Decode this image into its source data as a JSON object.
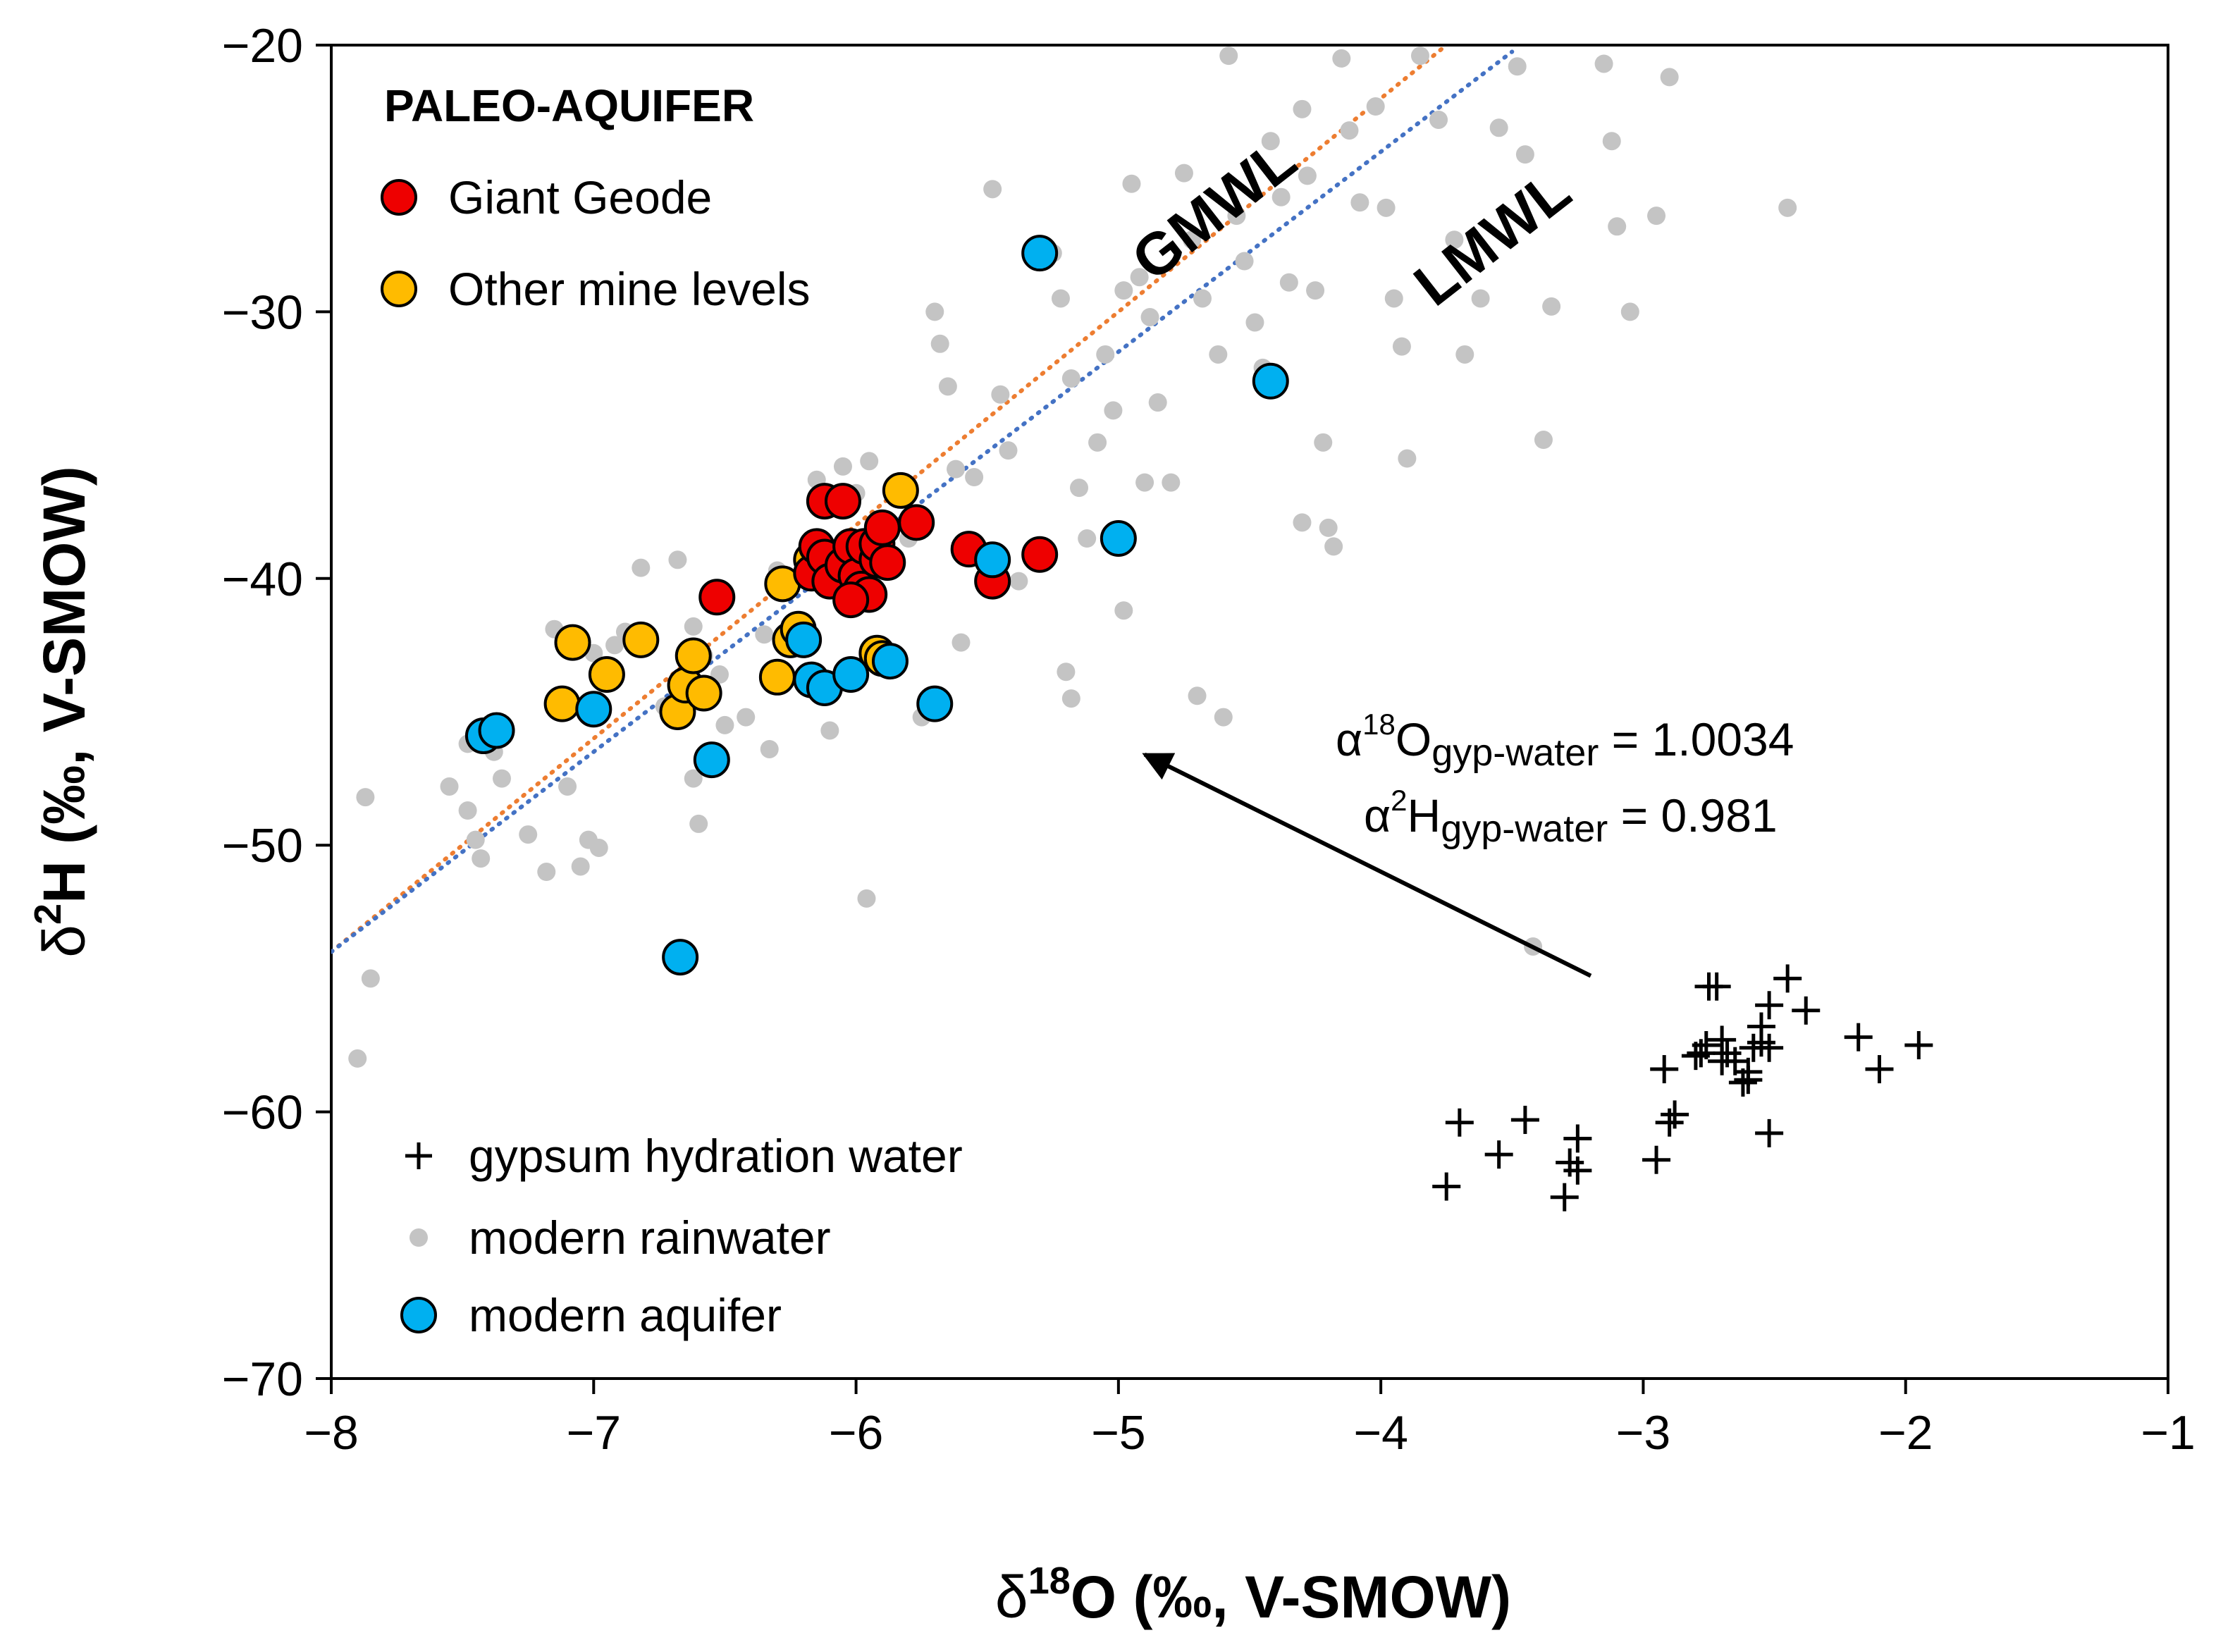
{
  "colors": {
    "giant_geode": "#ee0000",
    "other_levels": "#ffbb00",
    "modern_aquifer": "#00b0f0",
    "rainwater": "#c4c4c4",
    "gmwl": "#ed7d31",
    "lmwl": "#4472c4",
    "ink": "#000000"
  },
  "chart_data": {
    "type": "scatter",
    "xlabel": {
      "prefix": "δ",
      "sup": "18",
      "main": "O (‰, V-SMOW)"
    },
    "ylabel": {
      "prefix": "δ",
      "sup": "2",
      "main": "H (‰, V-SMOW)"
    },
    "xlim": [
      -8,
      -1
    ],
    "ylim": [
      -70,
      -20
    ],
    "x_ticks": [
      -8,
      -7,
      -6,
      -5,
      -4,
      -3,
      -2,
      -1
    ],
    "y_ticks": [
      -20,
      -30,
      -40,
      -50,
      -60,
      -70
    ],
    "x_tick_labels": [
      "−8",
      "−7",
      "−6",
      "−5",
      "−4",
      "−3",
      "−2",
      "−1"
    ],
    "y_tick_labels": [
      "−20",
      "−30",
      "−40",
      "−50",
      "−60",
      "−70"
    ],
    "grid": false,
    "legend_top": {
      "title": "PALEO-AQUIFER",
      "items": [
        "Giant Geode",
        "Other mine levels"
      ]
    },
    "legend_bottom": {
      "items": [
        "gypsum hydration water",
        "modern rainwater",
        "modern aquifer"
      ]
    },
    "lines": [
      {
        "name": "GMWL",
        "slope": 8,
        "intercept": 10,
        "x_range": [
          -8,
          -3.75
        ],
        "style": "dotted"
      },
      {
        "name": "LMWL",
        "slope": 7.5,
        "intercept": 6,
        "x_range": [
          -8,
          -3.5
        ],
        "style": "dotted"
      }
    ],
    "annotation": {
      "line1": {
        "alpha": "α",
        "sup": "18",
        "el": "O",
        "sub": "gyp-water",
        "val": " = 1.0034"
      },
      "line2": {
        "alpha": "α",
        "sup": "2",
        "el": "H",
        "sub": "gyp-water",
        "val": " = 0.981"
      },
      "arrow_from": [
        -3.2,
        -54.9
      ],
      "arrow_to": [
        -4.9,
        -46.6
      ]
    },
    "series": [
      {
        "name": "modern rainwater",
        "marker": "dot",
        "points": [
          [
            -7.9,
            -58
          ],
          [
            -7.85,
            -55
          ],
          [
            -7.87,
            -48.2
          ],
          [
            -7.55,
            -47.8
          ],
          [
            -7.48,
            -48.7
          ],
          [
            -7.45,
            -49.8
          ],
          [
            -7.43,
            -50.5
          ],
          [
            -7.38,
            -46.5
          ],
          [
            -7.25,
            -49.6
          ],
          [
            -7.18,
            -51
          ],
          [
            -7.1,
            -47.8
          ],
          [
            -7.05,
            -50.8
          ],
          [
            -7.02,
            -49.8
          ],
          [
            -6.98,
            -50.1
          ],
          [
            -7.15,
            -41.9
          ],
          [
            -7,
            -42.8
          ],
          [
            -6.92,
            -42.5
          ],
          [
            -6.88,
            -42
          ],
          [
            -6.82,
            -39.6
          ],
          [
            -6.73,
            -44.8
          ],
          [
            -6.68,
            -39.3
          ],
          [
            -6.62,
            -41.8
          ],
          [
            -6.58,
            -42.9
          ],
          [
            -6.52,
            -43.6
          ],
          [
            -6.5,
            -45.5
          ],
          [
            -6.42,
            -45.2
          ],
          [
            -6.3,
            -39.7
          ],
          [
            -6.33,
            -46.4
          ],
          [
            -6.22,
            -42.6
          ],
          [
            -6.1,
            -45.7
          ],
          [
            -6.05,
            -35.8
          ],
          [
            -6,
            -36.8
          ],
          [
            -5.95,
            -35.6
          ],
          [
            -5.96,
            -52
          ],
          [
            -5.85,
            -39.2
          ],
          [
            -5.7,
            -30
          ],
          [
            -5.68,
            -31.2
          ],
          [
            -5.65,
            -32.8
          ],
          [
            -5.62,
            -35.9
          ],
          [
            -5.55,
            -36.2
          ],
          [
            -5.48,
            -25.4
          ],
          [
            -5.45,
            -33.1
          ],
          [
            -5.42,
            -35.2
          ],
          [
            -5.38,
            -40.1
          ],
          [
            -5.25,
            -27.8
          ],
          [
            -5.22,
            -29.5
          ],
          [
            -5.18,
            -32.5
          ],
          [
            -5.15,
            -36.6
          ],
          [
            -5.12,
            -38.5
          ],
          [
            -5.08,
            -34.9
          ],
          [
            -5.05,
            -31.6
          ],
          [
            -5.02,
            -33.7
          ],
          [
            -4.98,
            -29.2
          ],
          [
            -4.95,
            -25.2
          ],
          [
            -4.92,
            -28.7
          ],
          [
            -4.88,
            -30.2
          ],
          [
            -4.85,
            -33.4
          ],
          [
            -4.8,
            -36.4
          ],
          [
            -4.75,
            -24.8
          ],
          [
            -4.72,
            -27.3
          ],
          [
            -4.68,
            -29.5
          ],
          [
            -4.62,
            -31.6
          ],
          [
            -4.58,
            -20.4
          ],
          [
            -4.55,
            -26.4
          ],
          [
            -4.52,
            -28.1
          ],
          [
            -4.48,
            -30.4
          ],
          [
            -4.45,
            -32.1
          ],
          [
            -4.42,
            -23.6
          ],
          [
            -4.38,
            -25.7
          ],
          [
            -4.35,
            -28.9
          ],
          [
            -4.3,
            -22.4
          ],
          [
            -4.28,
            -24.9
          ],
          [
            -4.25,
            -29.2
          ],
          [
            -4.22,
            -34.9
          ],
          [
            -4.2,
            -38.1
          ],
          [
            -4.18,
            -38.8
          ],
          [
            -4.15,
            -20.5
          ],
          [
            -4.12,
            -23.2
          ],
          [
            -4.08,
            -25.9
          ],
          [
            -4.02,
            -22.3
          ],
          [
            -3.98,
            -26.1
          ],
          [
            -3.95,
            -29.5
          ],
          [
            -3.92,
            -31.3
          ],
          [
            -3.9,
            -35.5
          ],
          [
            -3.85,
            -20.4
          ],
          [
            -3.78,
            -22.8
          ],
          [
            -3.72,
            -27.3
          ],
          [
            -3.68,
            -31.6
          ],
          [
            -3.62,
            -29.5
          ],
          [
            -3.55,
            -23.1
          ],
          [
            -3.48,
            -20.8
          ],
          [
            -3.45,
            -24.1
          ],
          [
            -3.42,
            -53.8
          ],
          [
            -3.38,
            -34.8
          ],
          [
            -3.35,
            -29.8
          ],
          [
            -3.15,
            -20.7
          ],
          [
            -3.12,
            -23.6
          ],
          [
            -3.1,
            -26.8
          ],
          [
            -3.05,
            -30
          ],
          [
            -2.95,
            -26.4
          ],
          [
            -2.9,
            -21.2
          ],
          [
            -2.45,
            -26.1
          ],
          [
            -5.8,
            -38.5
          ],
          [
            -5.2,
            -43.5
          ],
          [
            -5.18,
            -44.5
          ],
          [
            -4.98,
            -41.2
          ],
          [
            -4.9,
            -36.4
          ],
          [
            -4.7,
            -44.4
          ],
          [
            -4.6,
            -45.2
          ],
          [
            -4.3,
            -37.9
          ],
          [
            -5.6,
            -42.4
          ],
          [
            -5.75,
            -45.2
          ],
          [
            -6.12,
            -38.9
          ],
          [
            -6.15,
            -36.3
          ],
          [
            -6.35,
            -42.1
          ],
          [
            -6.6,
            -49.2
          ],
          [
            -6.62,
            -47.5
          ],
          [
            -6.15,
            -43.5
          ],
          [
            -7.35,
            -47.5
          ],
          [
            -7.48,
            -46.2
          ]
        ]
      },
      {
        "name": "gypsum hydration water",
        "marker": "plus",
        "points": [
          [
            -3.75,
            -62.8
          ],
          [
            -3.7,
            -60.4
          ],
          [
            -3.55,
            -61.6
          ],
          [
            -3.45,
            -60.3
          ],
          [
            -3.3,
            -63.2
          ],
          [
            -3.25,
            -61
          ],
          [
            -3.25,
            -62.2
          ],
          [
            -3.28,
            -61.9
          ],
          [
            -2.95,
            -61.8
          ],
          [
            -2.92,
            -58.4
          ],
          [
            -2.9,
            -60.4
          ],
          [
            -2.88,
            -60.1
          ],
          [
            -2.78,
            -57.8
          ],
          [
            -2.75,
            -55.3
          ],
          [
            -2.72,
            -55.3
          ],
          [
            -2.7,
            -57.3
          ],
          [
            -2.7,
            -58.1
          ],
          [
            -2.65,
            -58.1
          ],
          [
            -2.62,
            -58.9
          ],
          [
            -2.6,
            -58.5
          ],
          [
            -2.6,
            -58.8
          ],
          [
            -2.55,
            -56.8
          ],
          [
            -2.55,
            -57.4
          ],
          [
            -2.52,
            -57.6
          ],
          [
            -2.52,
            -56
          ],
          [
            -2.52,
            -60.8
          ],
          [
            -2.45,
            -55
          ],
          [
            -2.38,
            -56.2
          ],
          [
            -2.18,
            -57.2
          ],
          [
            -2.1,
            -58.4
          ],
          [
            -1.95,
            -57.5
          ],
          [
            -2.58,
            -57.6
          ],
          [
            -2.68,
            -57.8
          ],
          [
            -2.8,
            -57.9
          ],
          [
            -2.76,
            -57.5
          ]
        ]
      },
      {
        "name": "Other mine levels",
        "marker": "circle",
        "points": [
          [
            -7.12,
            -44.7
          ],
          [
            -7.08,
            -42.4
          ],
          [
            -6.95,
            -43.6
          ],
          [
            -6.82,
            -42.3
          ],
          [
            -6.68,
            -45
          ],
          [
            -6.65,
            -44
          ],
          [
            -6.62,
            -42.9
          ],
          [
            -6.58,
            -44.3
          ],
          [
            -6.3,
            -43.7
          ],
          [
            -6.28,
            -40.2
          ],
          [
            -6.25,
            -42.3
          ],
          [
            -6.22,
            -41.9
          ],
          [
            -6.17,
            -39.3
          ],
          [
            -5.92,
            -42.8
          ],
          [
            -5.9,
            -43
          ],
          [
            -5.83,
            -36.7
          ]
        ]
      },
      {
        "name": "Giant Geode",
        "marker": "circle",
        "points": [
          [
            -6.53,
            -40.7
          ],
          [
            -6.17,
            -39.8
          ],
          [
            -6.15,
            -38.8
          ],
          [
            -6.12,
            -37.1
          ],
          [
            -6.12,
            -39.2
          ],
          [
            -6.1,
            -40.1
          ],
          [
            -6.05,
            -37.1
          ],
          [
            -6.05,
            -39.5
          ],
          [
            -6.02,
            -38.8
          ],
          [
            -6,
            -39.9
          ],
          [
            -5.98,
            -40.4
          ],
          [
            -5.97,
            -38.8
          ],
          [
            -5.95,
            -40.6
          ],
          [
            -5.92,
            -39.3
          ],
          [
            -5.92,
            -38.7
          ],
          [
            -5.9,
            -38.1
          ],
          [
            -5.88,
            -39.4
          ],
          [
            -5.77,
            -37.9
          ],
          [
            -5.57,
            -38.9
          ],
          [
            -5.48,
            -40.1
          ],
          [
            -5.3,
            -39.1
          ],
          [
            -6.02,
            -40.8
          ]
        ]
      },
      {
        "name": "modern aquifer",
        "marker": "circle",
        "points": [
          [
            -7.42,
            -45.9
          ],
          [
            -7.37,
            -45.7
          ],
          [
            -7.0,
            -44.9
          ],
          [
            -6.67,
            -54.2
          ],
          [
            -6.55,
            -46.8
          ],
          [
            -6.2,
            -42.3
          ],
          [
            -6.17,
            -43.8
          ],
          [
            -6.12,
            -44.1
          ],
          [
            -6.02,
            -43.6
          ],
          [
            -5.87,
            -43.1
          ],
          [
            -5.7,
            -44.7
          ],
          [
            -5.48,
            -39.3
          ],
          [
            -5.3,
            -27.8
          ],
          [
            -5.0,
            -38.5
          ],
          [
            -4.42,
            -32.6
          ]
        ]
      }
    ]
  }
}
